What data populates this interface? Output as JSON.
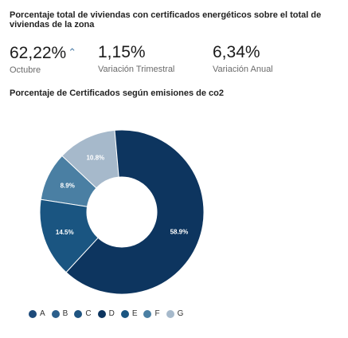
{
  "header": {
    "title": "Porcentaje total de viviendas con certificados energéticos sobre el total de viviendas de la zona"
  },
  "stats": [
    {
      "value": "62,22%",
      "label": "Octubre",
      "trend": "up"
    },
    {
      "value": "1,15%",
      "label": "Variación Trimestral"
    },
    {
      "value": "6,34%",
      "label": "Variación Anual"
    }
  ],
  "chart_data": {
    "type": "pie",
    "title": "Porcentaje de Certificados según emisiones de co2",
    "categories": [
      "A",
      "B",
      "C",
      "D",
      "E",
      "F",
      "G"
    ],
    "values": [
      0,
      0,
      0,
      58.9,
      14.5,
      8.9,
      10.8
    ],
    "data_labels": [
      "",
      "",
      "",
      "58.9%",
      "14.5%",
      "8.9%",
      "10.8%"
    ],
    "colors": [
      "#1d4a7a",
      "#2b5f8c",
      "#1f5481",
      "#0d355f",
      "#1a5581",
      "#4a7fa3",
      "#a6b9cb"
    ],
    "legend_position": "bottom",
    "donut": true
  }
}
